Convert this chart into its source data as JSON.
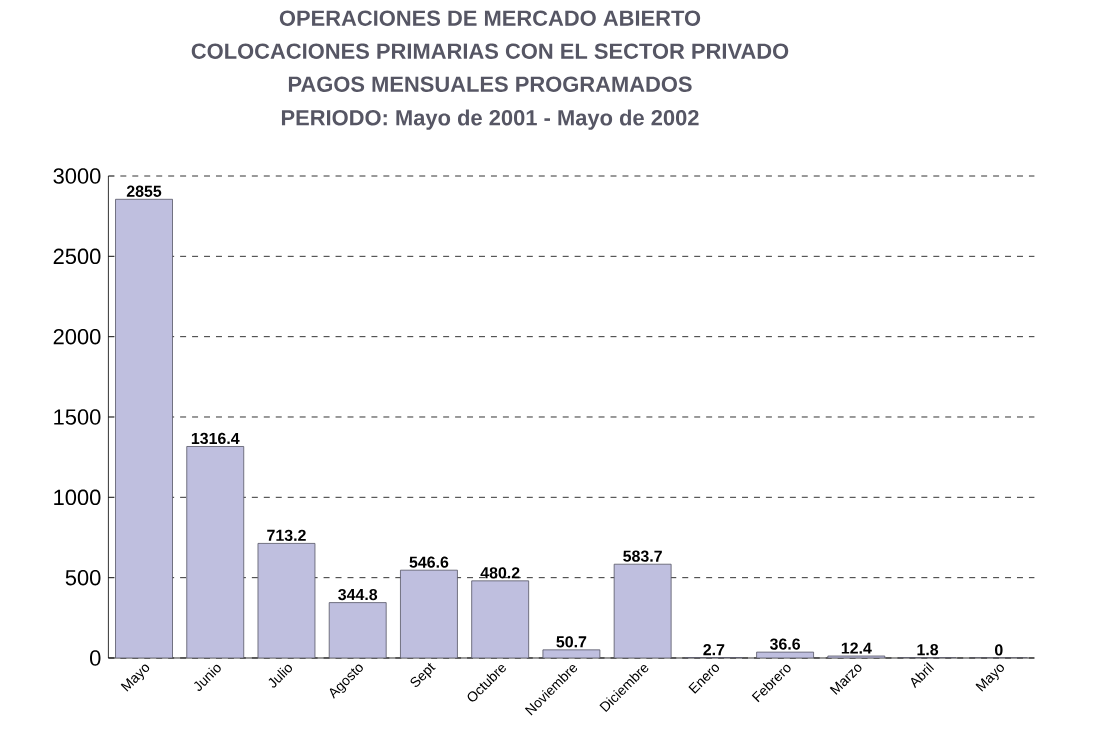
{
  "chart_data": {
    "type": "bar",
    "title": "OPERACIONES DE MERCADO ABIERTO",
    "subtitle": "COLOCACIONES PRIMARIAS CON EL SECTOR PRIVADO",
    "annotations": [
      "PAGOS MENSUALES PROGRAMADOS",
      "PERIODO: Mayo de 2001 - Mayo de 2002"
    ],
    "categories": [
      "Mayo",
      "Junio",
      "Julio",
      "Agosto",
      "Sept",
      "Octubre",
      "Noviembre",
      "Diciembre",
      "Enero",
      "Febrero",
      "Marzo",
      "Abril",
      "Mayo"
    ],
    "values": [
      2855,
      1316.4,
      713.2,
      344.8,
      546.6,
      480.2,
      50.7,
      583.7,
      2.7,
      36.6,
      12.4,
      1.8,
      0
    ],
    "value_labels": [
      "2855",
      "1316.4",
      "713.2",
      "344.8",
      "546.6",
      "480.2",
      "50.7",
      "583.7",
      "2.7",
      "36.6",
      "12.4",
      "1.8",
      "0"
    ],
    "color": "#bfbfdf",
    "ylim": [
      0,
      3000
    ],
    "yticks": [
      0,
      500,
      1000,
      1500,
      2000,
      2500,
      3000
    ],
    "grid": "y"
  }
}
